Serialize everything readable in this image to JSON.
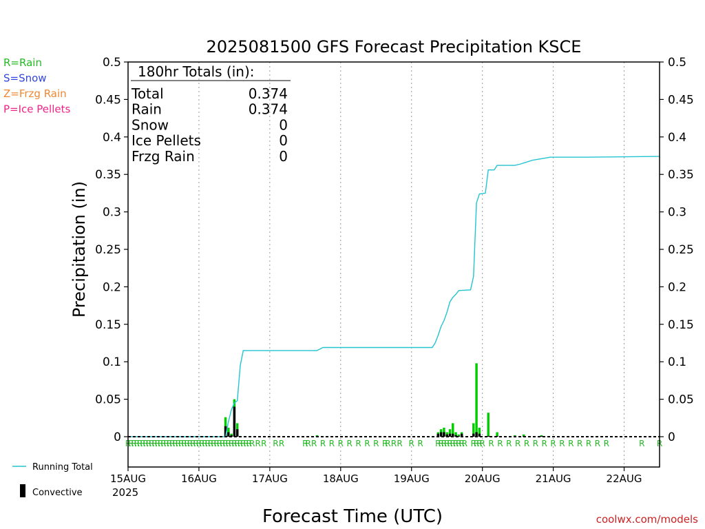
{
  "chart_data": {
    "type": "bar",
    "title": "2025081500 GFS Forecast Precipitation KSCE",
    "ylabel": "Precipitation (in)",
    "xlabel": "Forecast Time (UTC)",
    "ylim": [
      0,
      0.5
    ],
    "xlim_hours": [
      0,
      180
    ],
    "y_ticks": [
      "0",
      "0.05",
      "0.1",
      "0.15",
      "0.2",
      "0.25",
      "0.3",
      "0.35",
      "0.4",
      "0.45",
      "0.5"
    ],
    "x_ticks": [
      {
        "hour": 0,
        "label": "15AUG"
      },
      {
        "hour": 24,
        "label": "16AUG"
      },
      {
        "hour": 48,
        "label": "17AUG"
      },
      {
        "hour": 72,
        "label": "18AUG"
      },
      {
        "hour": 96,
        "label": "19AUG"
      },
      {
        "hour": 120,
        "label": "20AUG"
      },
      {
        "hour": 144,
        "label": "21AUG"
      },
      {
        "hour": 168,
        "label": "22AUG"
      }
    ],
    "year_label": "2025",
    "grid": "vertical dotted at day boundaries",
    "totals_box": {
      "heading": "180hr Totals (in):",
      "rows": [
        {
          "label": "Total",
          "value": "0.374"
        },
        {
          "label": "Rain",
          "value": "0.374"
        },
        {
          "label": "Snow",
          "value": "0"
        },
        {
          "label": "Ice Pellets",
          "value": "0"
        },
        {
          "label": "Frzg Rain",
          "value": "0"
        }
      ]
    },
    "type_legend": [
      {
        "text": "R=Rain",
        "color": "#22bb22"
      },
      {
        "text": "S=Snow",
        "color": "#3344dd"
      },
      {
        "text": "Z=Frzg Rain",
        "color": "#ee8833"
      },
      {
        "text": "P=Ice Pellets",
        "color": "#ee2288"
      }
    ],
    "series_legend": [
      {
        "name": "Running Total",
        "color": "#22c4d0"
      },
      {
        "name": "Convective",
        "color": "#000000"
      }
    ],
    "precip_bars": [
      [
        33,
        0.026,
        0.014
      ],
      [
        34,
        0.012,
        0.006
      ],
      [
        35,
        0.004,
        0.002
      ],
      [
        36,
        0.05,
        0.04
      ],
      [
        37,
        0.018,
        0.01
      ],
      [
        64,
        0.002,
        0.001
      ],
      [
        105,
        0.006,
        0.004
      ],
      [
        106,
        0.01,
        0.006
      ],
      [
        107,
        0.012,
        0.006
      ],
      [
        108,
        0.006,
        0.003
      ],
      [
        109,
        0.01,
        0.004
      ],
      [
        110,
        0.018,
        0.004
      ],
      [
        111,
        0.006,
        0.002
      ],
      [
        112,
        0.003,
        0.001
      ],
      [
        113,
        0.006,
        0.004
      ],
      [
        117,
        0.018,
        0.004
      ],
      [
        118,
        0.098,
        0.006
      ],
      [
        119,
        0.012,
        0.004
      ],
      [
        122,
        0.032,
        0.001
      ],
      [
        125,
        0.006,
        0.001
      ],
      [
        131,
        0.002,
        0.001
      ],
      [
        134,
        0.003,
        0.001
      ],
      [
        140,
        0.002,
        0.001
      ]
    ],
    "running_total": [
      [
        0,
        0
      ],
      [
        33,
        0
      ],
      [
        34,
        0.02
      ],
      [
        35,
        0.036
      ],
      [
        36,
        0.045
      ],
      [
        37,
        0.048
      ],
      [
        38,
        0.095
      ],
      [
        39,
        0.115
      ],
      [
        60,
        0.115
      ],
      [
        64,
        0.115
      ],
      [
        65,
        0.117
      ],
      [
        66,
        0.119
      ],
      [
        103,
        0.119
      ],
      [
        104,
        0.125
      ],
      [
        105,
        0.135
      ],
      [
        106,
        0.147
      ],
      [
        107,
        0.155
      ],
      [
        108,
        0.166
      ],
      [
        109,
        0.18
      ],
      [
        110,
        0.186
      ],
      [
        111,
        0.19
      ],
      [
        112,
        0.195
      ],
      [
        116,
        0.196
      ],
      [
        117,
        0.214
      ],
      [
        118,
        0.312
      ],
      [
        119,
        0.324
      ],
      [
        121,
        0.325
      ],
      [
        122,
        0.356
      ],
      [
        124,
        0.356
      ],
      [
        125,
        0.362
      ],
      [
        131,
        0.362
      ],
      [
        133,
        0.364
      ],
      [
        137,
        0.369
      ],
      [
        140,
        0.371
      ],
      [
        143,
        0.373
      ],
      [
        155,
        0.373
      ],
      [
        180,
        0.374
      ]
    ],
    "rain_marker_label": "R",
    "rain_marker_hours": [
      0,
      1,
      2,
      3,
      4,
      5,
      6,
      7,
      8,
      9,
      10,
      11,
      12,
      13,
      14,
      15,
      16,
      17,
      18,
      19,
      20,
      21,
      22,
      23,
      24,
      25,
      26,
      27,
      28,
      29,
      30,
      31,
      32,
      33,
      34,
      35,
      36,
      37,
      38,
      39,
      40,
      41,
      42,
      44,
      46,
      50,
      52,
      60,
      61,
      63,
      66,
      69,
      72,
      75,
      78,
      81,
      84,
      87,
      88,
      90,
      92,
      96,
      99,
      105,
      106,
      107,
      108,
      109,
      110,
      111,
      112,
      113,
      114,
      117,
      118,
      119,
      120,
      123,
      126,
      129,
      132,
      135,
      138,
      141,
      144,
      147,
      150,
      153,
      156,
      159,
      162,
      174,
      180
    ]
  },
  "credit": "coolwx.com/models"
}
